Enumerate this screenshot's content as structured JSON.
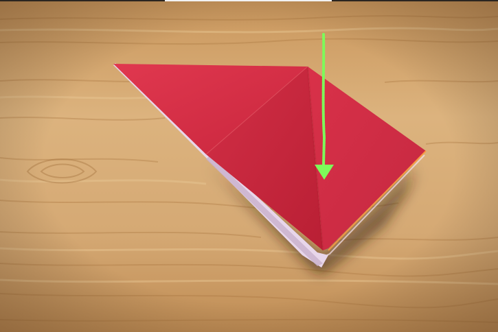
{
  "scene": {
    "subject": "origami-fold-step",
    "colors": {
      "wood_light": "#d9b07a",
      "wood_mid": "#c99a62",
      "wood_dark": "#a8753f",
      "paper_red": "#d63048",
      "paper_red_dark": "#b81f35",
      "paper_red_light": "#e24a5e",
      "paper_underside": "#e8d6ea",
      "shadow": "#3a2614",
      "arrow_green": "#7dfa5a",
      "edge_highlight": "#ff9a3c"
    },
    "icons": {
      "fold_arrow": "down-arrow-icon"
    }
  }
}
